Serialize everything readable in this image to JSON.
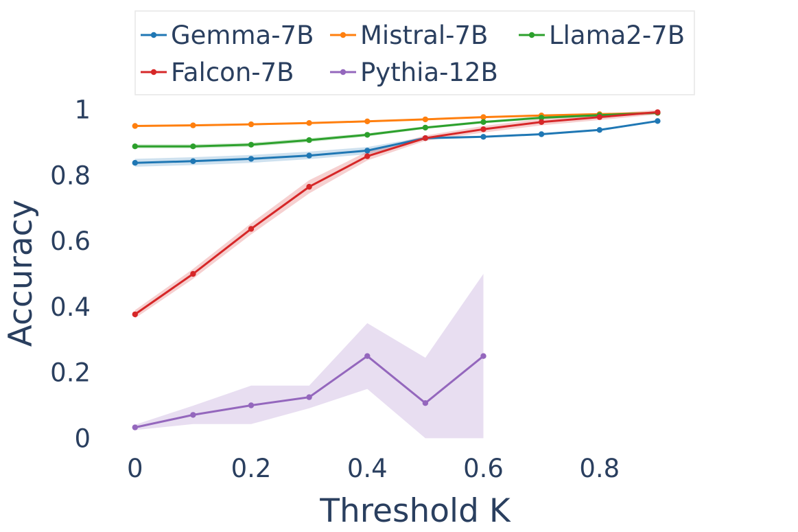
{
  "chart_data": {
    "type": "line",
    "title": "",
    "xlabel": "Threshold K",
    "ylabel": "Accuracy",
    "xlim": [
      -0.06,
      1.0
    ],
    "ylim": [
      -0.02,
      1.02
    ],
    "xticks": [
      0,
      0.2,
      0.4,
      0.6,
      0.8
    ],
    "xtick_labels": [
      "0",
      "0.2",
      "0.4",
      "0.6",
      "0.8"
    ],
    "yticks": [
      0,
      0.2,
      0.4,
      0.6,
      0.8,
      1
    ],
    "ytick_labels": [
      "0",
      "0.2",
      "0.4",
      "0.6",
      "0.8",
      "1"
    ],
    "grid": false,
    "legend_position": "top",
    "series": [
      {
        "name": "Gemma-7B",
        "color": "#1f77b4",
        "x": [
          0,
          0.1,
          0.2,
          0.3,
          0.4,
          0.5,
          0.6,
          0.7,
          0.8,
          0.9
        ],
        "y": [
          0.838,
          0.843,
          0.85,
          0.86,
          0.875,
          0.913,
          0.917,
          0.925,
          0.938,
          0.965
        ],
        "lower": [
          0.826,
          0.831,
          0.838,
          0.849,
          0.864,
          0.909,
          0.914,
          0.922,
          0.935,
          0.962
        ],
        "upper": [
          0.85,
          0.855,
          0.862,
          0.872,
          0.886,
          0.917,
          0.92,
          0.928,
          0.941,
          0.968
        ]
      },
      {
        "name": "Mistral-7B",
        "color": "#ff7f0e",
        "x": [
          0,
          0.1,
          0.2,
          0.3,
          0.4,
          0.5,
          0.6,
          0.7,
          0.8,
          0.9
        ],
        "y": [
          0.95,
          0.952,
          0.955,
          0.959,
          0.964,
          0.97,
          0.977,
          0.982,
          0.986,
          0.99
        ],
        "lower": [
          0.947,
          0.949,
          0.952,
          0.956,
          0.961,
          0.967,
          0.974,
          0.979,
          0.983,
          0.987
        ],
        "upper": [
          0.953,
          0.955,
          0.958,
          0.962,
          0.967,
          0.973,
          0.98,
          0.985,
          0.989,
          0.993
        ]
      },
      {
        "name": "Llama2-7B",
        "color": "#2ca02c",
        "x": [
          0,
          0.1,
          0.2,
          0.3,
          0.4,
          0.5,
          0.6,
          0.7,
          0.8,
          0.9
        ],
        "y": [
          0.888,
          0.888,
          0.893,
          0.907,
          0.923,
          0.945,
          0.962,
          0.975,
          0.983,
          0.99
        ],
        "lower": [
          0.882,
          0.882,
          0.887,
          0.901,
          0.918,
          0.941,
          0.958,
          0.971,
          0.979,
          0.986
        ],
        "upper": [
          0.894,
          0.894,
          0.899,
          0.913,
          0.928,
          0.949,
          0.966,
          0.979,
          0.987,
          0.994
        ]
      },
      {
        "name": "Falcon-7B",
        "color": "#d62728",
        "x": [
          0,
          0.1,
          0.2,
          0.3,
          0.4,
          0.5,
          0.6,
          0.7,
          0.8,
          0.9
        ],
        "y": [
          0.377,
          0.5,
          0.637,
          0.765,
          0.858,
          0.913,
          0.94,
          0.962,
          0.977,
          0.992
        ],
        "lower": [
          0.365,
          0.485,
          0.62,
          0.745,
          0.845,
          0.905,
          0.93,
          0.952,
          0.968,
          0.985
        ],
        "upper": [
          0.39,
          0.515,
          0.654,
          0.785,
          0.872,
          0.921,
          0.95,
          0.972,
          0.986,
          0.999
        ]
      },
      {
        "name": "Pythia-12B",
        "color": "#9467bd",
        "x": [
          0,
          0.1,
          0.2,
          0.3,
          0.4,
          0.5,
          0.6
        ],
        "y": [
          0.033,
          0.071,
          0.1,
          0.125,
          0.25,
          0.107,
          0.25
        ],
        "lower": [
          0.025,
          0.043,
          0.043,
          0.091,
          0.15,
          0.0,
          0.0
        ],
        "upper": [
          0.041,
          0.099,
          0.16,
          0.16,
          0.35,
          0.245,
          0.5
        ]
      }
    ]
  }
}
